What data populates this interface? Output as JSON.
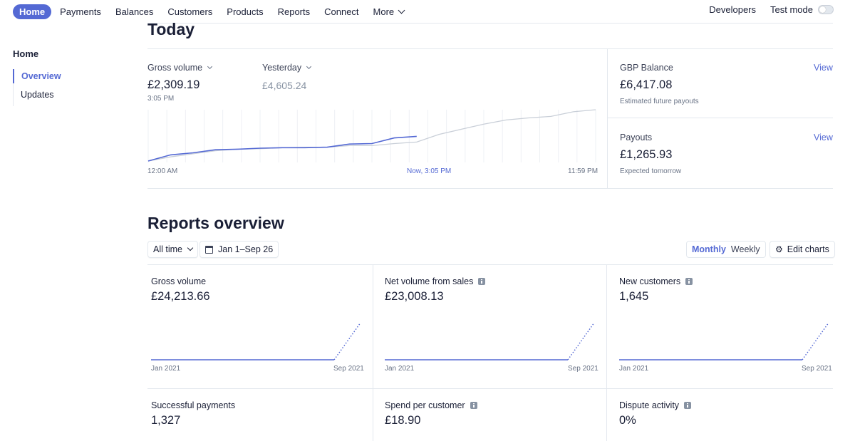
{
  "nav": {
    "home": "Home",
    "items": [
      "Payments",
      "Balances",
      "Customers",
      "Products",
      "Reports",
      "Connect",
      "More"
    ],
    "developers": "Developers",
    "test_mode": "Test mode"
  },
  "sidebar": {
    "title": "Home",
    "items": [
      {
        "label": "Overview",
        "active": true
      },
      {
        "label": "Updates",
        "active": false
      }
    ]
  },
  "today": {
    "title": "Today",
    "gross_label": "Gross volume",
    "gross_value": "£2,309.19",
    "gross_time": "3:05 PM",
    "yesterday_label": "Yesterday",
    "yesterday_value": "£4,605.24",
    "axis_start": "12:00 AM",
    "axis_now": "Now, 3:05 PM",
    "axis_end": "11:59 PM",
    "balance_label": "GBP Balance",
    "balance_value": "£6,417.08",
    "balance_sub": "Estimated future payouts",
    "payouts_label": "Payouts",
    "payouts_value": "£1,265.93",
    "payouts_sub": "Expected tomorrow",
    "view": "View"
  },
  "reports": {
    "title": "Reports overview",
    "filter": "All time",
    "date_range": "Jan 1–Sep 26",
    "monthly": "Monthly",
    "weekly": "Weekly",
    "edit_charts": "Edit charts",
    "cards": [
      {
        "label": "Gross volume",
        "value": "£24,213.66",
        "info": false,
        "x_start": "Jan 2021",
        "x_end": "Sep 2021"
      },
      {
        "label": "Net volume from sales",
        "value": "£23,008.13",
        "info": true,
        "x_start": "Jan 2021",
        "x_end": "Sep 2021"
      },
      {
        "label": "New customers",
        "value": "1,645",
        "info": true,
        "x_start": "Jan 2021",
        "x_end": "Sep 2021"
      },
      {
        "label": "Successful payments",
        "value": "1,327",
        "info": false
      },
      {
        "label": "Spend per customer",
        "value": "£18.90",
        "info": true
      },
      {
        "label": "Dispute activity",
        "value": "0%",
        "info": true
      }
    ]
  },
  "chart_data": {
    "type": "line",
    "series": [
      {
        "name": "Gross volume",
        "color": "#5469d4",
        "values": [
          0.0,
          0.12,
          0.16,
          0.22,
          0.23,
          0.25,
          0.26,
          0.26,
          0.27,
          0.33,
          0.34,
          0.45,
          0.48
        ]
      },
      {
        "name": "Yesterday",
        "color": "#c9cfd8",
        "values": [
          0.0,
          0.08,
          0.14,
          0.2,
          0.23,
          0.24,
          0.26,
          0.27,
          0.27,
          0.3,
          0.3,
          0.34,
          0.37,
          0.52,
          0.62,
          0.72,
          0.8,
          0.84,
          0.87,
          0.96,
          1.0
        ]
      }
    ],
    "colors": {
      "accent": "#5469d4",
      "muted": "#c9cfd8"
    }
  }
}
